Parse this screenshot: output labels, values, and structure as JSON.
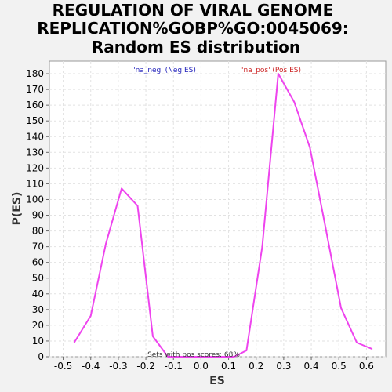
{
  "chart_data": {
    "type": "line",
    "title": [
      "REGULATION OF VIRAL GENOME",
      "REPLICATION%GOBP%GO:0045069:",
      "Random ES distribution"
    ],
    "xlabel": "ES",
    "ylabel": "P(ES)",
    "xlim": [
      -0.55,
      0.67
    ],
    "ylim": [
      0,
      188
    ],
    "grid": true,
    "x_ticks": [
      "-0.5",
      "-0.4",
      "-0.3",
      "-0.2",
      "-0.1",
      "0.0",
      "0.1",
      "0.2",
      "0.3",
      "0.4",
      "0.5",
      "0.6"
    ],
    "y_ticks": [
      "0",
      "10",
      "20",
      "30",
      "40",
      "50",
      "60",
      "70",
      "80",
      "90",
      "100",
      "110",
      "120",
      "130",
      "140",
      "150",
      "160",
      "170",
      "180"
    ],
    "series": [
      {
        "color": "#ee44ee",
        "points": [
          [
            -0.46,
            9
          ],
          [
            -0.4,
            26
          ],
          [
            -0.345,
            72
          ],
          [
            -0.288,
            107
          ],
          [
            -0.23,
            96
          ],
          [
            -0.175,
            13
          ],
          [
            -0.12,
            0
          ],
          [
            -0.06,
            0
          ],
          [
            0.0,
            0
          ],
          [
            0.06,
            0
          ],
          [
            0.12,
            0
          ],
          [
            0.165,
            4
          ],
          [
            0.222,
            70
          ],
          [
            0.28,
            180
          ],
          [
            0.338,
            162
          ],
          [
            0.395,
            133
          ],
          [
            0.452,
            82
          ],
          [
            0.508,
            31
          ],
          [
            0.565,
            9
          ],
          [
            0.62,
            5
          ]
        ]
      }
    ],
    "legend": {
      "neg_label": "'na_neg' (Neg ES)",
      "neg_color": "#2222bb",
      "pos_label": "'na_pos' (Pos ES)",
      "pos_color": "#cc2222"
    },
    "annotation": "Sets with pos scores: 68%"
  }
}
